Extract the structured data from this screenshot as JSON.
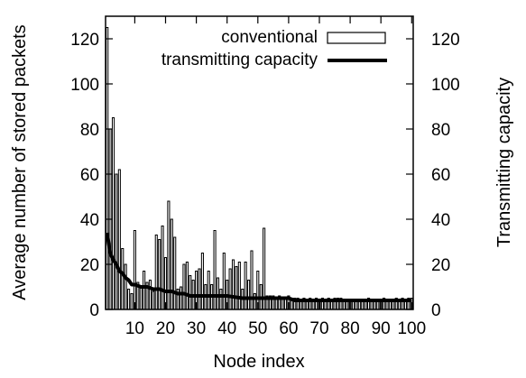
{
  "chart_data": {
    "type": "bar",
    "xlabel": "Node index",
    "ylabel": "Average number of stored packets",
    "y2label": "Transmitting capacity",
    "ylim": [
      0,
      130
    ],
    "y2lim": [
      0,
      130
    ],
    "xlim": [
      0.5,
      100.5
    ],
    "x_ticks": [
      10,
      20,
      30,
      40,
      50,
      60,
      70,
      80,
      90,
      100
    ],
    "x_tick_labels": [
      "10",
      "20",
      "30",
      "40",
      "50",
      "60",
      "70",
      "80",
      "90",
      "100"
    ],
    "y_ticks": [
      0,
      20,
      40,
      60,
      80,
      100,
      120
    ],
    "y_tick_labels": [
      "0",
      "20",
      "40",
      "60",
      "80",
      "100",
      "120"
    ],
    "y2_ticks": [
      0,
      20,
      40,
      60,
      80,
      100,
      120
    ],
    "y2_tick_labels": [
      "0",
      "20",
      "40",
      "60",
      "80",
      "100",
      "120"
    ],
    "grid": false,
    "legend_position": "top-right",
    "series": [
      {
        "name": "conventional",
        "kind": "bar",
        "x": [
          1,
          2,
          3,
          4,
          5,
          6,
          7,
          8,
          9,
          10,
          11,
          12,
          13,
          14,
          15,
          16,
          17,
          18,
          19,
          20,
          21,
          22,
          23,
          24,
          25,
          26,
          27,
          28,
          29,
          30,
          31,
          32,
          33,
          34,
          35,
          36,
          37,
          38,
          39,
          40,
          41,
          42,
          43,
          44,
          45,
          46,
          47,
          48,
          49,
          50,
          51,
          52,
          53,
          54,
          55,
          56,
          57,
          58,
          59,
          60,
          61,
          62,
          63,
          64,
          65,
          66,
          67,
          68,
          69,
          70,
          71,
          72,
          73,
          74,
          75,
          76,
          77,
          78,
          79,
          80,
          81,
          82,
          83,
          84,
          85,
          86,
          87,
          88,
          89,
          90,
          91,
          92,
          93,
          94,
          95,
          96,
          97,
          98,
          99,
          100
        ],
        "values": [
          125,
          80,
          85,
          60,
          62,
          27,
          20,
          9,
          7,
          35,
          12,
          10,
          17,
          12,
          13,
          8,
          33,
          31,
          37,
          23,
          48,
          40,
          32,
          9,
          10,
          20,
          21,
          15,
          13,
          17,
          18,
          25,
          11,
          17,
          11,
          35,
          14,
          9,
          25,
          13,
          18,
          22,
          19,
          21,
          9,
          21,
          13,
          26,
          7,
          17,
          11,
          36,
          6,
          6,
          6,
          5,
          6,
          5,
          5,
          6,
          5,
          5,
          5,
          4,
          5,
          4,
          5,
          4,
          5,
          4,
          5,
          4,
          5,
          4,
          5,
          5,
          5,
          4,
          4,
          4,
          4,
          4,
          4,
          4,
          4,
          5,
          4,
          4,
          4,
          4,
          5,
          4,
          4,
          4,
          5,
          4,
          5,
          4,
          5,
          5
        ]
      },
      {
        "name": "transmitting capacity",
        "kind": "line",
        "axis": "right",
        "x": [
          1,
          2,
          3,
          4,
          5,
          6,
          7,
          8,
          9,
          10,
          12,
          14,
          16,
          18,
          20,
          22,
          24,
          26,
          28,
          30,
          35,
          40,
          45,
          50,
          55,
          60,
          62,
          64,
          66,
          70,
          80,
          90,
          100
        ],
        "values": [
          34,
          25,
          22,
          20,
          17,
          16,
          14,
          13,
          11,
          11,
          10,
          10,
          9,
          9,
          8,
          8,
          7,
          7,
          6,
          6,
          6,
          6,
          5,
          5,
          5,
          5,
          4,
          4,
          4,
          4,
          4,
          4,
          4
        ]
      }
    ]
  }
}
